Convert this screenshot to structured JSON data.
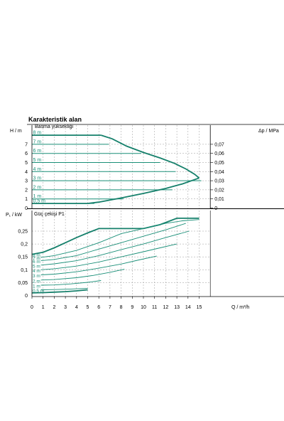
{
  "title": "Karakteristik alan",
  "colors": {
    "curve": "#1a8f78",
    "curve_bold": "#15806b",
    "grid": "#9a9a9a",
    "axis": "#000000",
    "text": "#000000"
  },
  "chart_data": [
    {
      "type": "line",
      "panel": "head",
      "subtitle": "Basma yüksekliği",
      "ylabel_left": "H / m",
      "ylabel_right": "Δp / MPa",
      "xlim": [
        0,
        16
      ],
      "ylim": [
        0,
        8.4
      ],
      "yticks": [
        0,
        1,
        2,
        3,
        4,
        5,
        6,
        7
      ],
      "right_ylim": [
        0,
        0.084
      ],
      "right_yticks": [
        "0",
        "0,01",
        "0,02",
        "0,03",
        "0,04",
        "0,05",
        "0,06",
        "0,07"
      ],
      "grid": true,
      "series": [
        {
          "name": "8 m",
          "x": [
            0,
            6.2
          ],
          "y": [
            8,
            8
          ],
          "bold": true
        },
        {
          "name": "7 m",
          "x": [
            0,
            6.9
          ],
          "y": [
            7,
            7
          ]
        },
        {
          "name": "6 m",
          "x": [
            0,
            9.8
          ],
          "y": [
            6,
            6
          ]
        },
        {
          "name": "5 m",
          "x": [
            0,
            11.5
          ],
          "y": [
            5,
            5
          ]
        },
        {
          "name": "4 m",
          "x": [
            0,
            12.9
          ],
          "y": [
            4,
            4
          ]
        },
        {
          "name": "3 m",
          "x": [
            0,
            15.2
          ],
          "y": [
            3,
            3
          ]
        },
        {
          "name": "2 m",
          "x": [
            0,
            12.6
          ],
          "y": [
            2,
            2
          ]
        },
        {
          "name": "1 m",
          "x": [
            0,
            8.2
          ],
          "y": [
            1,
            1
          ]
        },
        {
          "name": "0,5 m",
          "x": [
            0,
            5.6
          ],
          "y": [
            0.5,
            0.5
          ]
        },
        {
          "name": "",
          "x": [
            6.2,
            7.2,
            8.5,
            10.0,
            11.5,
            12.8,
            13.8,
            14.6,
            15.0
          ],
          "y": [
            8,
            7.6,
            6.8,
            6.1,
            5.5,
            4.9,
            4.3,
            3.7,
            3.3
          ],
          "bold": true
        },
        {
          "name": "",
          "x": [
            0,
            5.0,
            6.0,
            8.0,
            10.0,
            12.0,
            13.5,
            15.0
          ],
          "y": [
            0.5,
            0.5,
            0.65,
            1.1,
            1.6,
            2.15,
            2.65,
            3.3
          ],
          "bold": true
        }
      ]
    },
    {
      "type": "line",
      "panel": "power",
      "subtitle": "Güç çekişi P1",
      "ylabel": "P₁ / kW",
      "xlabel": "Q / m³/h",
      "xlim": [
        0,
        16
      ],
      "xticks": [
        "0",
        "1",
        "2",
        "3",
        "4",
        "5",
        "6",
        "7",
        "8",
        "9",
        "10",
        "11",
        "12",
        "13",
        "14",
        "15"
      ],
      "ylim": [
        0,
        0.3
      ],
      "yticks": [
        "0",
        "0,05",
        "0,1",
        "0,15",
        "0,2",
        "0,25"
      ],
      "grid": true,
      "series": [
        {
          "name": "8 m",
          "x": [
            0,
            1.0,
            2.0,
            3.0,
            4.0,
            5.0,
            6.0,
            6.2,
            7.5,
            10.0,
            11.5,
            13.0,
            15.0
          ],
          "y": [
            0.16,
            0.168,
            0.185,
            0.205,
            0.225,
            0.243,
            0.26,
            0.26,
            0.26,
            0.26,
            0.275,
            0.3,
            0.3
          ],
          "bold": true
        },
        {
          "name": "7 m",
          "x": [
            0.8,
            2.0,
            4.0,
            6.0,
            8.0,
            10.0,
            12.0,
            13.5,
            15.0
          ],
          "y": [
            0.148,
            0.155,
            0.175,
            0.205,
            0.24,
            0.26,
            0.28,
            0.29,
            0.295
          ]
        },
        {
          "name": "6 m",
          "x": [
            0.8,
            2.0,
            4.0,
            6.0,
            8.0,
            10.0,
            12.0,
            13.8
          ],
          "y": [
            0.135,
            0.14,
            0.155,
            0.18,
            0.205,
            0.23,
            0.255,
            0.28
          ]
        },
        {
          "name": "5 m",
          "x": [
            0.8,
            2.0,
            4.0,
            6.0,
            8.0,
            10.0,
            12.0,
            14.1
          ],
          "y": [
            0.118,
            0.123,
            0.135,
            0.155,
            0.178,
            0.2,
            0.225,
            0.25
          ]
        },
        {
          "name": "4 m",
          "x": [
            0.8,
            2.0,
            4.0,
            6.0,
            8.0,
            10.0,
            11.5,
            13.0
          ],
          "y": [
            0.1,
            0.104,
            0.114,
            0.13,
            0.15,
            0.17,
            0.185,
            0.2
          ]
        },
        {
          "name": "3 m",
          "x": [
            0.8,
            2.0,
            4.0,
            6.0,
            8.0,
            9.6,
            11.2
          ],
          "y": [
            0.08,
            0.083,
            0.092,
            0.106,
            0.122,
            0.138,
            0.153
          ]
        },
        {
          "name": "2 m",
          "x": [
            0.8,
            2.0,
            4.0,
            5.5,
            7.0,
            8.3
          ],
          "y": [
            0.06,
            0.062,
            0.069,
            0.078,
            0.09,
            0.102
          ]
        },
        {
          "name": "1 m",
          "x": [
            0.8,
            2.0,
            3.5,
            5.0,
            6.2
          ],
          "y": [
            0.04,
            0.041,
            0.045,
            0.051,
            0.058
          ]
        },
        {
          "name": "0,5 m",
          "x": [
            0.8,
            2.0,
            3.5,
            5.0
          ],
          "y": [
            0.022,
            0.023,
            0.025,
            0.028
          ]
        },
        {
          "name": "",
          "x": [
            0,
            1.0,
            2.0,
            3.0,
            4.0,
            5.0
          ],
          "y": [
            0.01,
            0.011,
            0.013,
            0.015,
            0.018,
            0.022
          ],
          "bold": true
        }
      ]
    }
  ]
}
